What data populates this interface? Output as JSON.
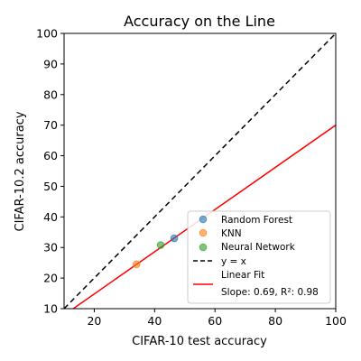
{
  "chart_data": {
    "type": "scatter",
    "title": "Accuracy on the Line",
    "xlabel": "CIFAR-10 test accuracy",
    "ylabel": "CIFAR-10.2 accuracy",
    "xlim": [
      10,
      100
    ],
    "ylim": [
      10,
      100
    ],
    "xticks": [
      20,
      40,
      60,
      80,
      100
    ],
    "yticks": [
      10,
      20,
      30,
      40,
      50,
      60,
      70,
      80,
      90,
      100
    ],
    "grid": false,
    "legend_position": "lower-right",
    "series": [
      {
        "name": "Random Forest",
        "color": "#1f77b4",
        "points": [
          [
            46.5,
            33.0
          ]
        ]
      },
      {
        "name": "KNN",
        "color": "#ff7f0e",
        "points": [
          [
            34.0,
            24.5
          ]
        ]
      },
      {
        "name": "Neural Network",
        "color": "#2ca02c",
        "points": [
          [
            42.0,
            30.8
          ]
        ]
      }
    ],
    "reference_line": {
      "name": "y = x",
      "color": "#000000",
      "style": "dashed",
      "from": [
        10,
        10
      ],
      "to": [
        100,
        100
      ]
    },
    "fit_line": {
      "name_line1": "Linear Fit",
      "name_line2": "Slope: 0.69, R²: 0.98",
      "color": "#ff0000",
      "slope": 0.69,
      "intercept": 1.0
    }
  }
}
